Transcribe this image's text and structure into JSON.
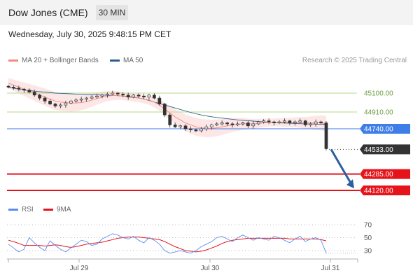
{
  "header": {
    "title": "Dow Jones (CME)",
    "interval": "30 MIN"
  },
  "timestamp": "Wednesday, July 30, 2025 9:48:15 PM CET",
  "legend": {
    "ma20_label": "MA 20 + Bollinger Bands",
    "ma50_label": "MA 50",
    "rsi_label": "RSI",
    "rsi_ma_label": "9MA"
  },
  "credit": "Research © 2025 Trading Central",
  "colors": {
    "ma20": "#f28b82",
    "ma50": "#2f5d8c",
    "bands": "#fde3e3",
    "resistance": "#b5d98e",
    "pivot": "#3f7ee8",
    "support": "#e5141b",
    "current": "#333333",
    "rsi": "#5b8def",
    "rsi_ma": "#e5141b",
    "arrow": "#2a5fa0"
  },
  "chart_data": {
    "type": "candlestick",
    "y_range": [
      44050,
      45300
    ],
    "x_labels": [
      "Jul 29",
      "Jul 30",
      "Jul 31"
    ],
    "levels": [
      {
        "value": 45100,
        "label": "45100.00",
        "kind": "resistance"
      },
      {
        "value": 44910,
        "label": "44910.00",
        "kind": "resistance"
      },
      {
        "value": 44740,
        "label": "44740.00",
        "kind": "pivot"
      },
      {
        "value": 44533,
        "label": "44533.00",
        "kind": "current"
      },
      {
        "value": 44285,
        "label": "44285.00",
        "kind": "support"
      },
      {
        "value": 44120,
        "label": "44120.00",
        "kind": "support"
      }
    ],
    "closes": [
      45160,
      45150,
      45140,
      45130,
      45110,
      45080,
      45050,
      45020,
      44990,
      44970,
      44980,
      45000,
      45020,
      45030,
      45040,
      45050,
      45060,
      45070,
      45080,
      45090,
      45100,
      45090,
      45080,
      45060,
      45080,
      45070,
      45060,
      45080,
      45050,
      44990,
      44880,
      44780,
      44760,
      44770,
      44740,
      44730,
      44720,
      44740,
      44760,
      44780,
      44790,
      44800,
      44790,
      44780,
      44790,
      44800,
      44770,
      44790,
      44810,
      44820,
      44810,
      44800,
      44810,
      44820,
      44800,
      44810,
      44820,
      44780,
      44790,
      44810,
      44800,
      44540
    ],
    "ma20": [
      45200,
      45180,
      45160,
      45140,
      45120,
      45100,
      45080,
      45060,
      45040,
      45020,
      45010,
      45005,
      45000,
      45000,
      45005,
      45015,
      45030,
      45045,
      45060,
      45070,
      45075,
      45075,
      45070,
      45060,
      45055,
      45050,
      45040,
      45030,
      45010,
      44980,
      44940,
      44900,
      44860,
      44830,
      44800,
      44780,
      44760,
      44750,
      44745,
      44745,
      44750,
      44760,
      44770,
      44780,
      44785,
      44790,
      44790,
      44790,
      44795,
      44800,
      44805,
      44805,
      44805,
      44805,
      44805,
      44805,
      44805,
      44800,
      44800,
      44800,
      44800,
      44790
    ],
    "ma50": [
      45160,
      45150,
      45140,
      45130,
      45125,
      45120,
      45115,
      45110,
      45105,
      45100,
      45098,
      45095,
      45092,
      45090,
      45088,
      45086,
      45084,
      45082,
      45080,
      45078,
      45076,
      45074,
      45070,
      45066,
      45060,
      45050,
      45040,
      45025,
      45010,
      44995,
      44980,
      44965,
      44950,
      44935,
      44920,
      44905,
      44892,
      44880,
      44870,
      44862,
      44855,
      44848,
      44842,
      44836,
      44830,
      44826,
      44822,
      44818,
      44814,
      44810,
      44806,
      44803,
      44800,
      44798,
      44796,
      44794,
      44792,
      44790,
      44789,
      44788,
      44787,
      44786
    ],
    "rsi_axis": {
      "ticks": [
        70,
        50,
        30
      ],
      "range": [
        20,
        80
      ]
    },
    "rsi": [
      40,
      34,
      28,
      32,
      50,
      42,
      35,
      30,
      45,
      38,
      32,
      28,
      34,
      40,
      46,
      44,
      38,
      40,
      48,
      52,
      56,
      54,
      50,
      48,
      52,
      46,
      42,
      50,
      46,
      40,
      30,
      26,
      28,
      30,
      28,
      26,
      30,
      36,
      40,
      44,
      50,
      52,
      48,
      44,
      50,
      54,
      50,
      46,
      50,
      48,
      46,
      52,
      50,
      46,
      42,
      48,
      52,
      44,
      48,
      50,
      46,
      26
    ],
    "rsi_ma": [
      46,
      44,
      41,
      38,
      38,
      38,
      38,
      37,
      38,
      39,
      38,
      36,
      35,
      36,
      38,
      40,
      41,
      42,
      43,
      45,
      47,
      49,
      50,
      51,
      51,
      51,
      50,
      49,
      48,
      47,
      44,
      40,
      36,
      33,
      30,
      29,
      28,
      29,
      31,
      34,
      37,
      41,
      44,
      46,
      47,
      48,
      49,
      49,
      49,
      49,
      49,
      49,
      49,
      49,
      48,
      48,
      48,
      48,
      48,
      48,
      47,
      45
    ]
  }
}
